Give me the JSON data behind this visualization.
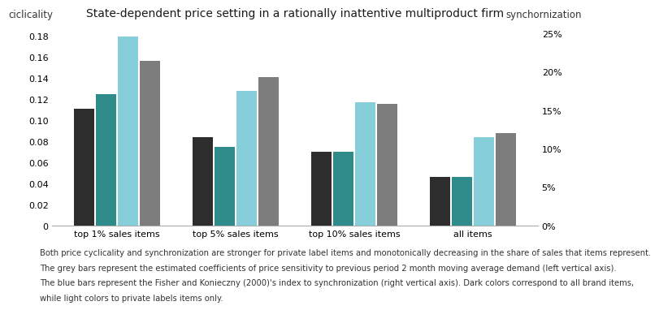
{
  "title": "State-dependent price setting in a rationally inattentive multiproduct firm",
  "categories": [
    "top 1% sales items",
    "top 5% sales items",
    "top 10% sales items",
    "all items"
  ],
  "ylabel_left": "ciclicality",
  "ylabel_right": "synchornization",
  "ylim_left": [
    0,
    0.19
  ],
  "ylim_right": [
    0,
    0.26
  ],
  "yticks_left": [
    0,
    0.02,
    0.04,
    0.06,
    0.08,
    0.1,
    0.12,
    0.14,
    0.16,
    0.18
  ],
  "yticks_right_vals": [
    0,
    0.05,
    0.1,
    0.15,
    0.2,
    0.25
  ],
  "yticks_right_labels": [
    "0%",
    "5%",
    "10%",
    "15%",
    "20%",
    "25%"
  ],
  "bar_width": 0.17,
  "bar_gap": 0.015,
  "bars": {
    "dark_charcoal": {
      "color": "#2d2d2d",
      "values": [
        0.111,
        0.084,
        0.07,
        0.046
      ]
    },
    "dark_teal": {
      "color": "#2e8b8a",
      "values": [
        0.125,
        0.075,
        0.07,
        0.046
      ]
    },
    "light_blue": {
      "color": "#87cedb",
      "values": [
        0.18,
        0.128,
        0.117,
        0.084
      ]
    },
    "gray": {
      "color": "#7d7d7d",
      "values": [
        0.157,
        0.141,
        0.116,
        0.088
      ]
    }
  },
  "footnote_lines": [
    "Both price cyclicality and synchronization are stronger for private label items and monotonically decreasing in the share of sales that items represent.",
    "The grey bars represent the estimated coefficients of price sensitivity to previous period 2 month moving average demand (left vertical axis).",
    "The blue bars represent the Fisher and Konieczny (2000)'s index to synchronization (right vertical axis). Dark colors correspond to all brand items,",
    "while light colors to private labels items only."
  ],
  "bg_color": "#ffffff",
  "spine_color": "#aaaaaa",
  "title_fontsize": 10,
  "axis_label_fontsize": 8.5,
  "tick_fontsize": 8,
  "footnote_fontsize": 7.2
}
